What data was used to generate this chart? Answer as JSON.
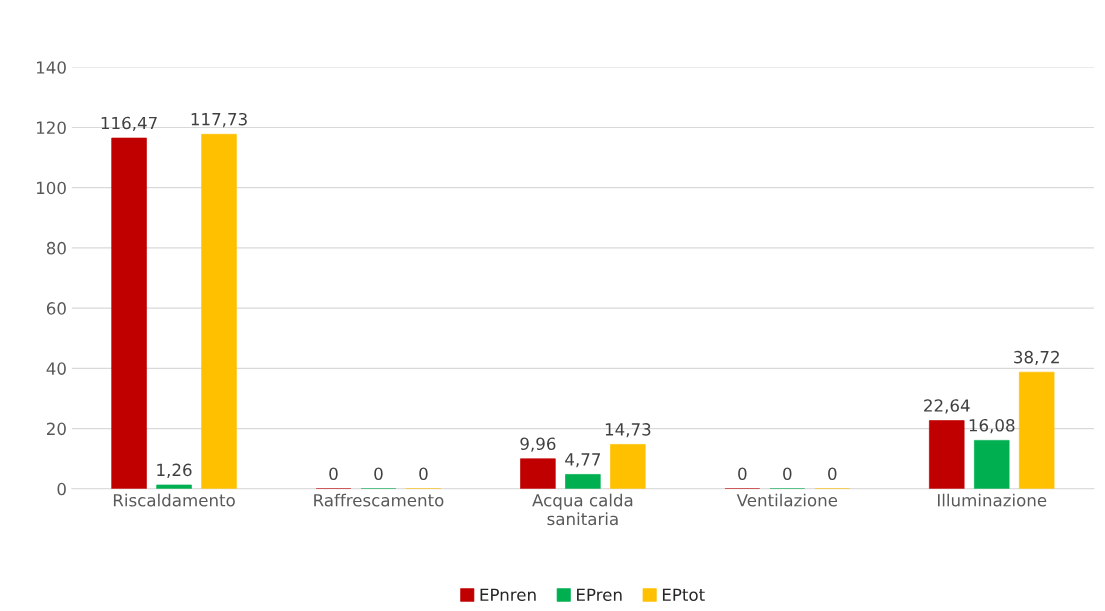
{
  "chart_data": {
    "type": "bar",
    "categories": [
      "Riscaldamento",
      "Raffrescamento",
      "Acqua calda\nsanitaria",
      "Ventilazione",
      "Illuminazione"
    ],
    "series": [
      {
        "name": "EPnren",
        "color": "#c00000",
        "values": [
          116.47,
          0,
          9.96,
          0,
          22.64
        ],
        "value_labels": [
          "116,47",
          "0",
          "9,96",
          "0",
          "22,64"
        ]
      },
      {
        "name": "EPren",
        "color": "#00b050",
        "values": [
          1.26,
          0,
          4.77,
          0,
          16.08
        ],
        "value_labels": [
          "1,26",
          "0",
          "4,77",
          "0",
          "16,08"
        ]
      },
      {
        "name": "EPtot",
        "color": "#ffc000",
        "values": [
          117.73,
          0,
          14.73,
          0,
          38.72
        ],
        "value_labels": [
          "117,73",
          "0",
          "14,73",
          "0",
          "38,72"
        ]
      }
    ],
    "ylim": [
      0,
      140
    ],
    "yticks": [
      0,
      20,
      40,
      60,
      80,
      100,
      120,
      140
    ],
    "grid": "y",
    "legend": "bottom"
  }
}
